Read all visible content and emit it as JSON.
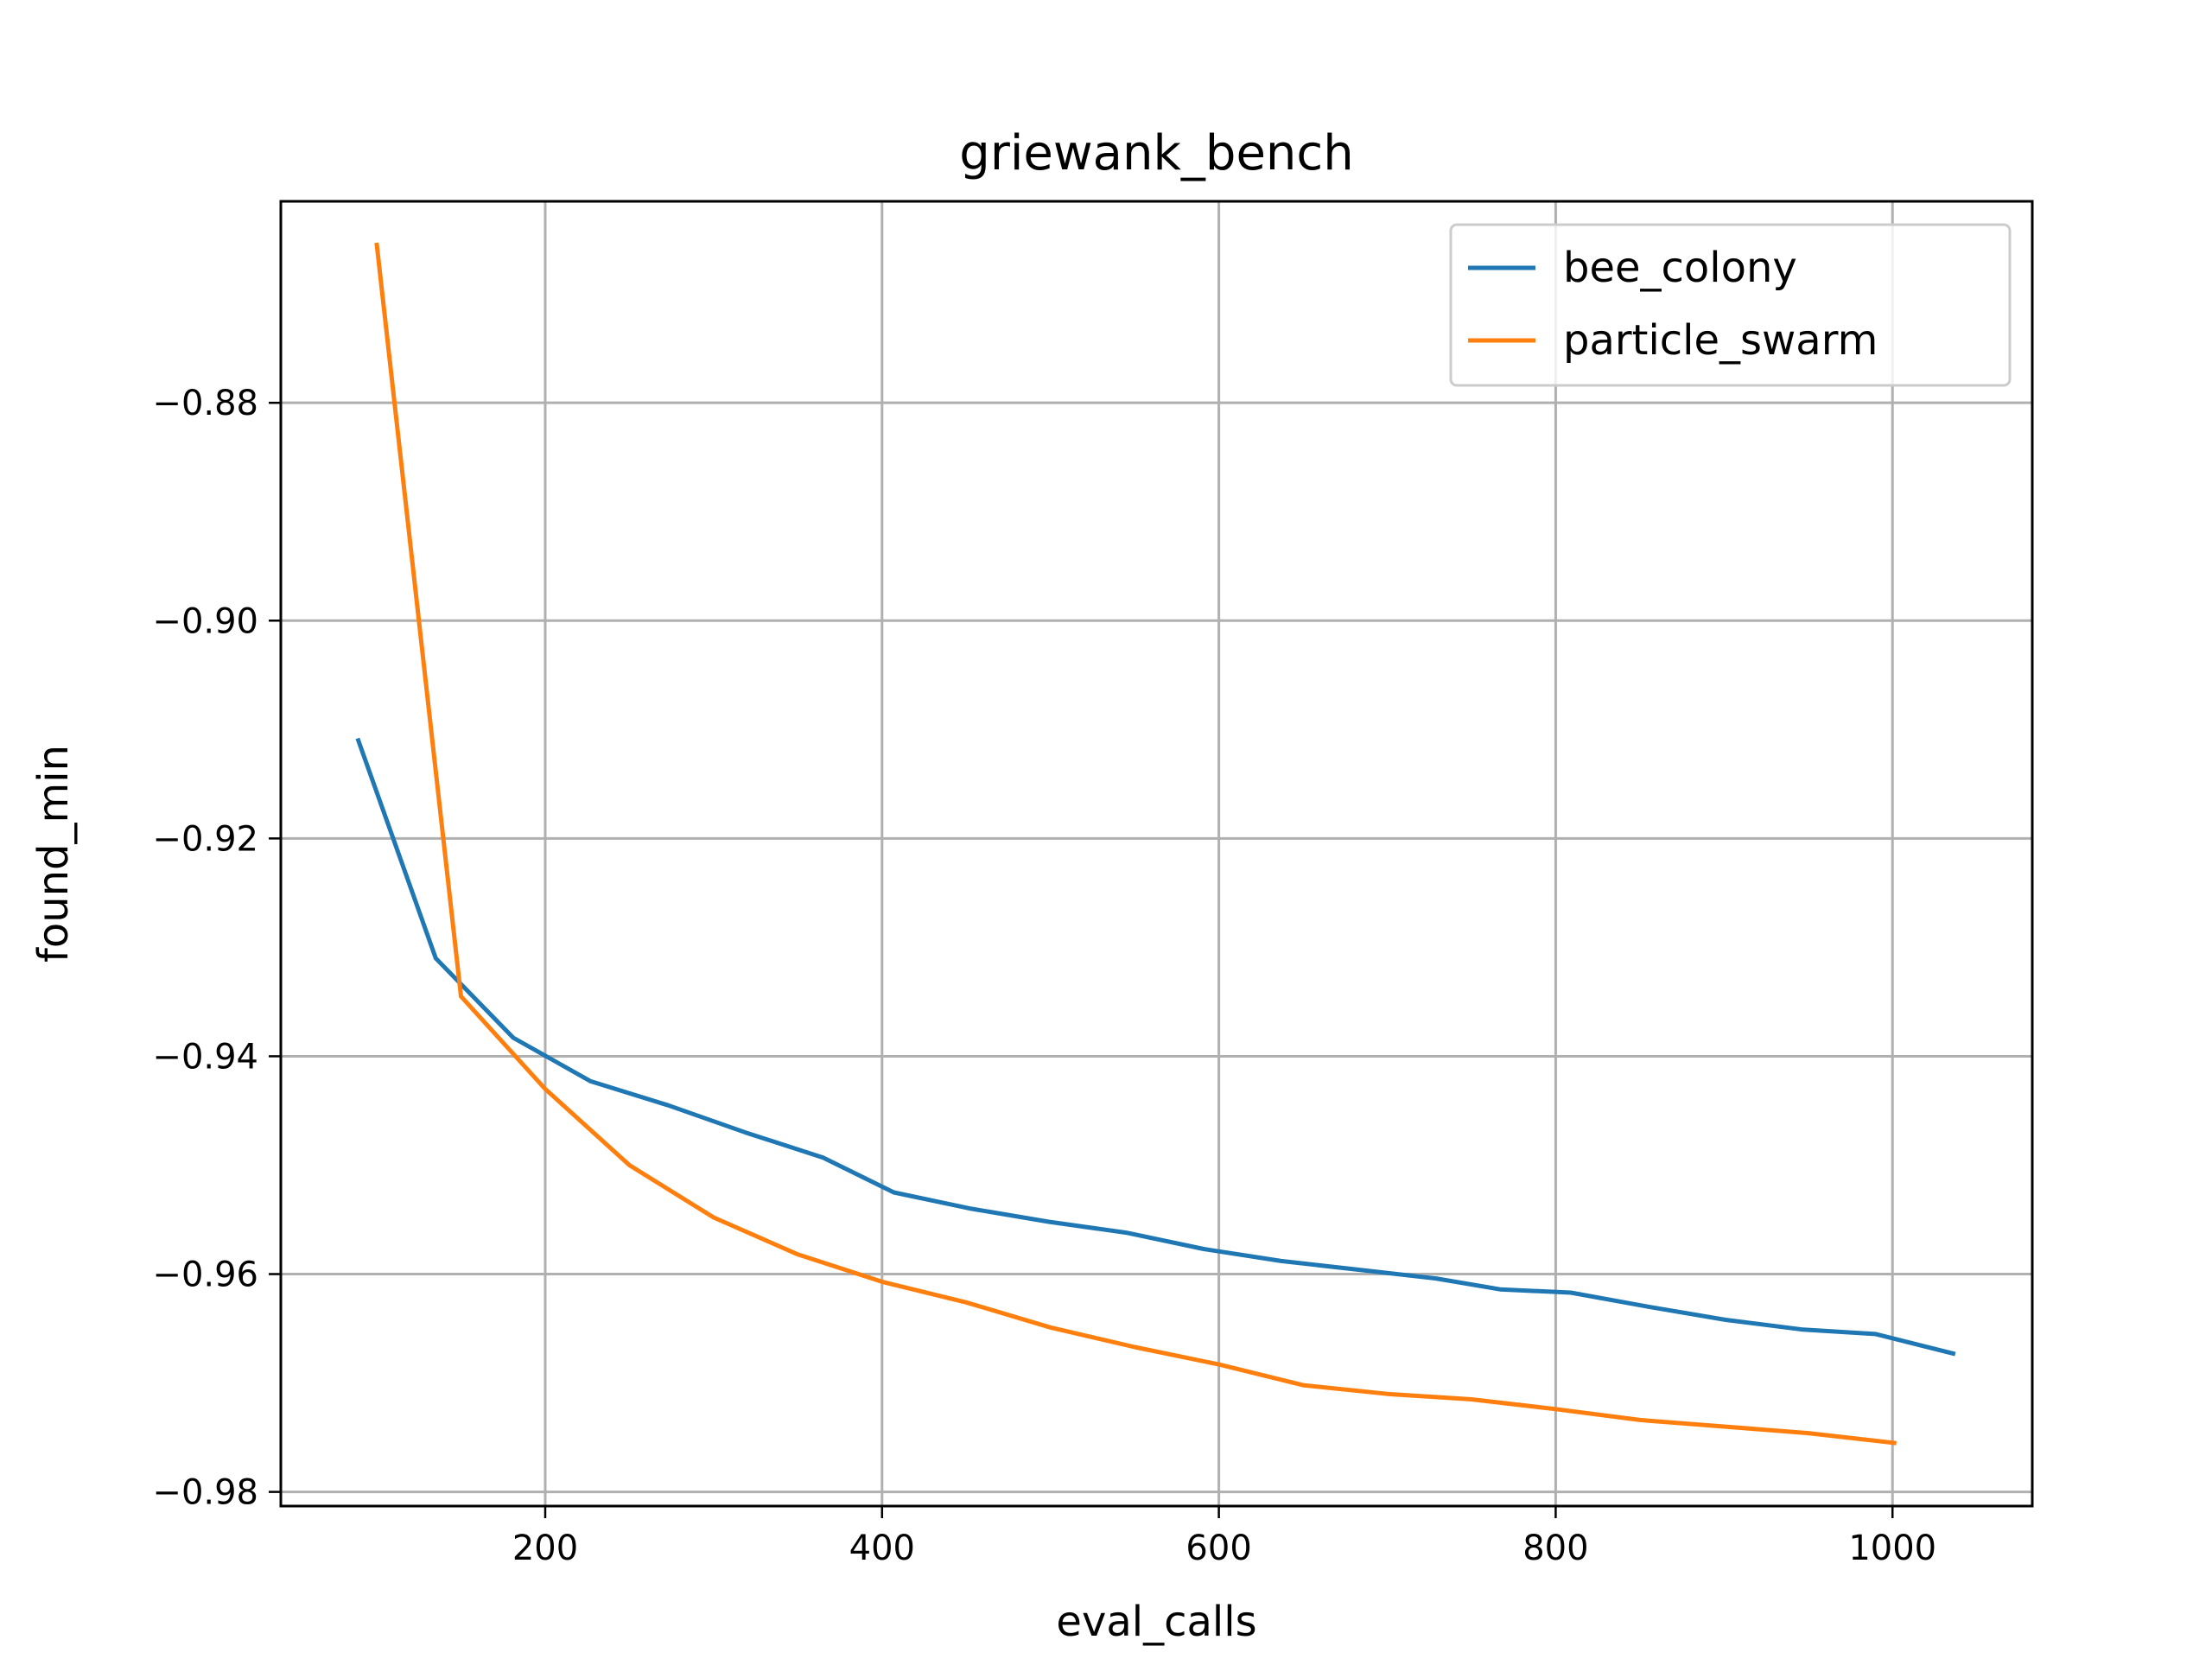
{
  "chart_data": {
    "type": "line",
    "title": "griewank_bench",
    "xlabel": "eval_calls",
    "ylabel": "found_min",
    "xlim": [
      43,
      1083
    ],
    "ylim": [
      -0.9813,
      -0.8615
    ],
    "x_ticks": [
      200,
      400,
      600,
      800,
      1000
    ],
    "x_tick_labels": [
      "200",
      "400",
      "600",
      "800",
      "1000"
    ],
    "y_ticks": [
      -0.98,
      -0.96,
      -0.94,
      -0.92,
      -0.9,
      -0.88
    ],
    "y_tick_labels": [
      "−0.98",
      "−0.96",
      "−0.94",
      "−0.92",
      "−0.90",
      "−0.88"
    ],
    "grid": true,
    "legend_position": "upper right",
    "series": [
      {
        "name": "bee_colony",
        "color": "#1f77b4",
        "x": [
          89,
          135,
          181,
          227,
          273,
          319,
          365,
          407,
          453,
          499,
          545,
          591,
          637,
          683,
          729,
          767,
          809,
          855,
          901,
          947,
          990,
          1036
        ],
        "y": [
          -0.911,
          -0.931,
          -0.9383,
          -0.9423,
          -0.9445,
          -0.947,
          -0.9493,
          -0.9525,
          -0.954,
          -0.9552,
          -0.9562,
          -0.9577,
          -0.9588,
          -0.9596,
          -0.9604,
          -0.9614,
          -0.9617,
          -0.963,
          -0.9642,
          -0.9651,
          -0.9655,
          -0.9673
        ]
      },
      {
        "name": "particle_swarm",
        "color": "#ff7f0e",
        "x": [
          100,
          150,
          200,
          250,
          300,
          350,
          400,
          450,
          500,
          550,
          600,
          650,
          700,
          750,
          800,
          850,
          900,
          950,
          1001
        ],
        "y": [
          -0.8655,
          -0.9345,
          -0.943,
          -0.95,
          -0.9548,
          -0.9582,
          -0.9607,
          -0.9626,
          -0.9649,
          -0.9667,
          -0.9683,
          -0.9702,
          -0.971,
          -0.9715,
          -0.9724,
          -0.9734,
          -0.974,
          -0.9746,
          -0.9755
        ]
      }
    ]
  }
}
